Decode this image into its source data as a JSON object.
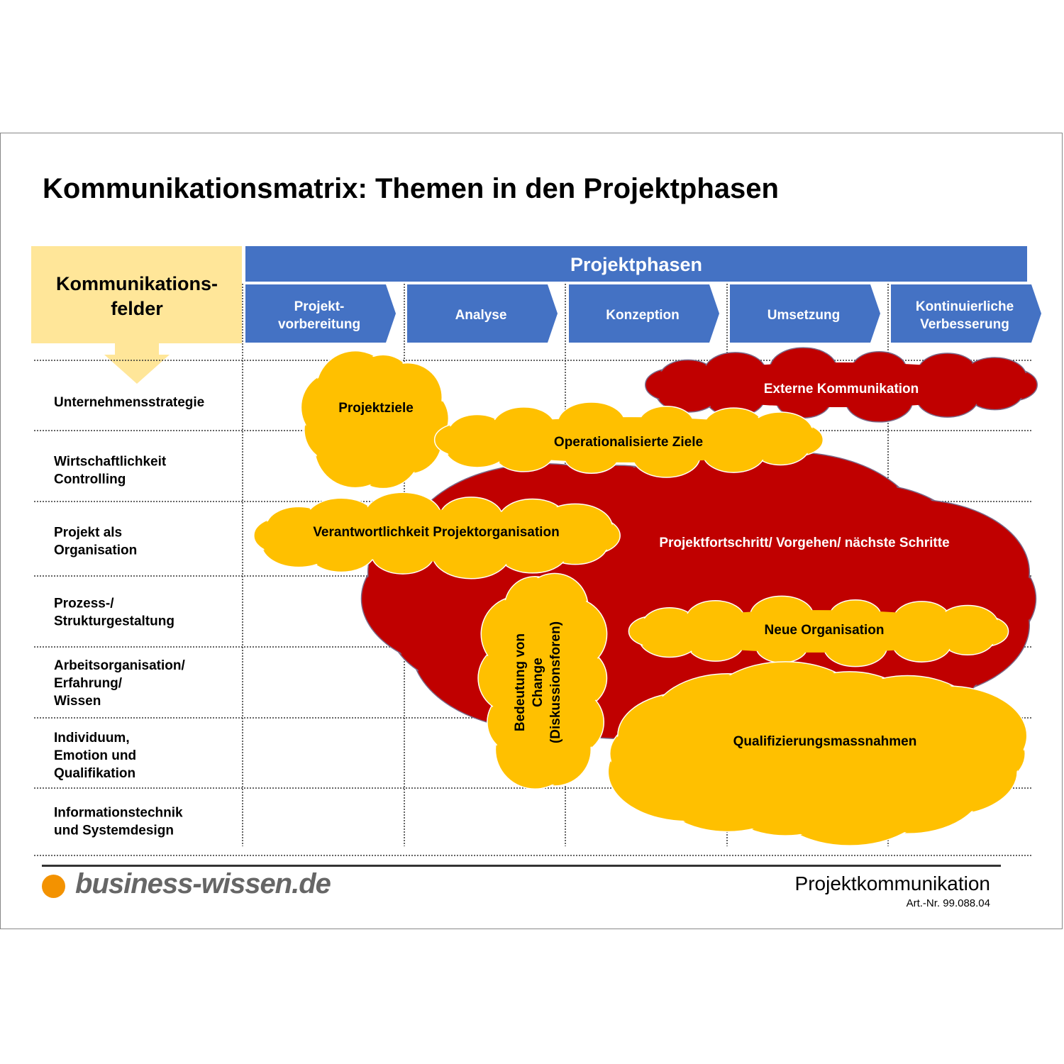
{
  "title": "Kommunikationsmatrix: Themen in den Projektphasen",
  "header": {
    "fields_label_line1": "Kommunikations-",
    "fields_label_line2": "felder",
    "phases_label": "Projektphasen",
    "phases": [
      {
        "line1": "Projekt-",
        "line2": "vorbereitung"
      },
      {
        "line1": "Analyse",
        "line2": ""
      },
      {
        "line1": "Konzeption",
        "line2": ""
      },
      {
        "line1": "Umsetzung",
        "line2": ""
      },
      {
        "line1": "Kontinuierliche",
        "line2": "Verbesserung"
      }
    ]
  },
  "rows": [
    {
      "lines": [
        "Unternehmensstrategie"
      ]
    },
    {
      "lines": [
        "Wirtschaftlichkeit",
        "Controlling"
      ]
    },
    {
      "lines": [
        "Projekt als",
        "Organisation"
      ]
    },
    {
      "lines": [
        "Prozess-/",
        "Strukturgestaltung"
      ]
    },
    {
      "lines": [
        "Arbeitsorganisation/",
        "Erfahrung/",
        "Wissen"
      ]
    },
    {
      "lines": [
        "Individuum,",
        "Emotion und",
        "Qualifikation"
      ]
    },
    {
      "lines": [
        "Informationstechnik",
        "und Systemdesign"
      ]
    }
  ],
  "clouds": {
    "projektziele": "Projektziele",
    "externe": "Externe Kommunikation",
    "fortschritt": "Projektfortschritt/ Vorgehen/ nächste Schritte",
    "operational": "Operationalisierte Ziele",
    "verantwortung": "Verantwortlichkeit Projektorganisation",
    "change": [
      "Bedeutung von",
      "Change",
      "(Diskussionsforen)"
    ],
    "neue_org": "Neue Organisation",
    "qualifizierung": "Qualifizierungsmassnahmen"
  },
  "colors": {
    "phase_blue": "#4472C4",
    "fields_yellow": "#FFE699",
    "cloud_yellow": "#FFC000",
    "cloud_red": "#C00000",
    "logo_orange": "#F39200"
  },
  "footer": {
    "logo": "business-wissen.de",
    "topic": "Projektkommunikation",
    "article": "Art.-Nr. 99.088.04"
  }
}
